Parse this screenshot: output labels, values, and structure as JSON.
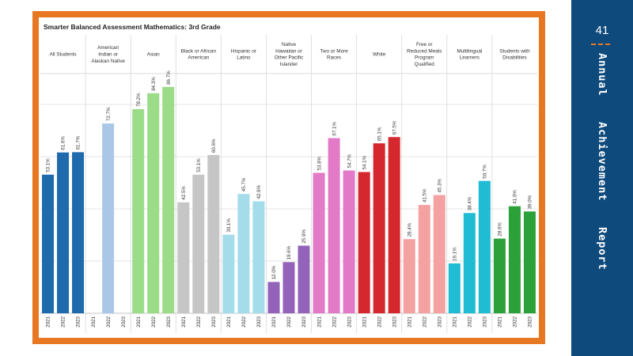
{
  "page": {
    "number": "41",
    "side_title": [
      "Annual",
      "Achievement",
      "Report"
    ]
  },
  "colors": {
    "frame": "#e87722",
    "side_panel": "#0e4a7c",
    "grid": "#dddddd"
  },
  "chart_data": {
    "type": "bar",
    "title": "Smarter Balanced Assessment Mathematics: 3rd Grade",
    "ylim": [
      0,
      100
    ],
    "grid": true,
    "years": [
      "2021",
      "2022",
      "2023"
    ],
    "groups": [
      {
        "name": "All Students",
        "label_lines": [
          "All Students"
        ],
        "color": "#1f6aad",
        "values": [
          53.1,
          61.6,
          61.7
        ]
      },
      {
        "name": "American Indian or Alaskan Native",
        "label_lines": [
          "American",
          "Indian or",
          "Alaskan Native"
        ],
        "color": "#aac7e8",
        "values": [
          null,
          72.7,
          null
        ]
      },
      {
        "name": "Asian",
        "label_lines": [
          "Asian"
        ],
        "color": "#9bdc88",
        "values": [
          78.2,
          84.3,
          86.7
        ]
      },
      {
        "name": "Black or African American",
        "label_lines": [
          "Black or African",
          "American"
        ],
        "color": "#c6c6c6",
        "values": [
          42.5,
          53.1,
          60.6
        ]
      },
      {
        "name": "Hispanic or Latino",
        "label_lines": [
          "Hispanic or",
          "Latino"
        ],
        "color": "#a4dcea",
        "values": [
          30.1,
          45.7,
          42.9
        ]
      },
      {
        "name": "Native Hawaiian or Other Pacific Islander",
        "label_lines": [
          "Native",
          "Hawaiian or",
          "Other Pacific",
          "Islander"
        ],
        "color": "#9363b9",
        "values": [
          12.0,
          19.6,
          25.9
        ]
      },
      {
        "name": "Two or More Races",
        "label_lines": [
          "Two or More",
          "Races"
        ],
        "color": "#e27ac7",
        "values": [
          53.8,
          67.1,
          54.7
        ]
      },
      {
        "name": "White",
        "label_lines": [
          "White"
        ],
        "color": "#d5282e",
        "values": [
          54.1,
          65.1,
          67.5
        ]
      },
      {
        "name": "Free or Reduced Meals Program Qualified",
        "label_lines": [
          "Free or",
          "Reduced Meals",
          "Program",
          "Qualified"
        ],
        "color": "#f4a1a1",
        "values": [
          28.4,
          41.5,
          45.3
        ]
      },
      {
        "name": "Multilingual Learners",
        "label_lines": [
          "Multilingual",
          "Learners"
        ],
        "color": "#20bcd3",
        "values": [
          19.1,
          38.4,
          50.7
        ]
      },
      {
        "name": "Students with Disabilities",
        "label_lines": [
          "Students with",
          "Disabilities"
        ],
        "color": "#2ca13a",
        "values": [
          28.6,
          41.0,
          39.0
        ]
      }
    ]
  }
}
